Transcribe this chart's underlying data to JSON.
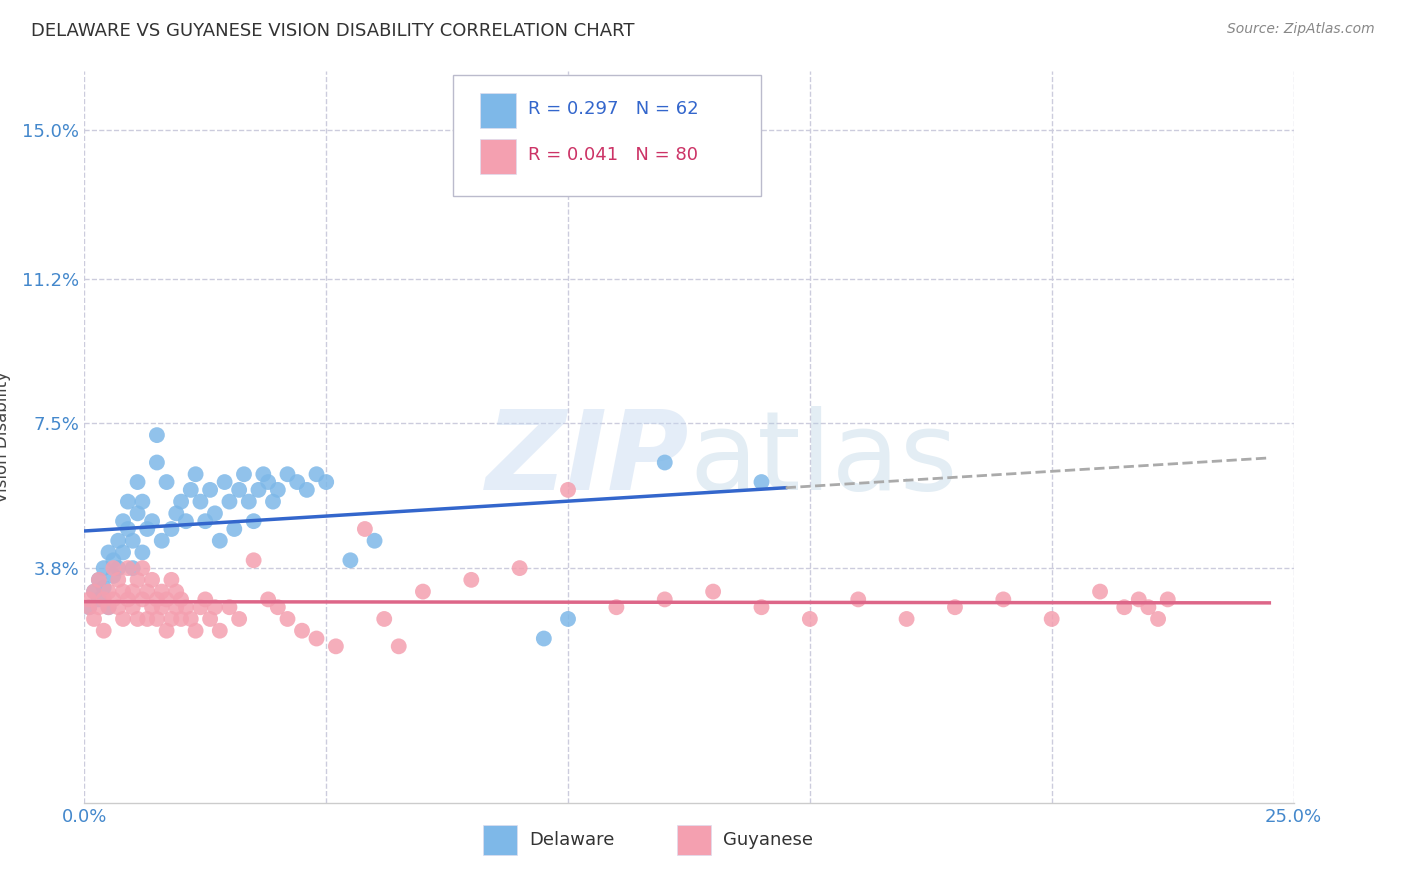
{
  "title": "DELAWARE VS GUYANESE VISION DISABILITY CORRELATION CHART",
  "source": "Source: ZipAtlas.com",
  "ylabel": "Vision Disability",
  "xlim": [
    0.0,
    0.25
  ],
  "ylim": [
    -0.022,
    0.165
  ],
  "ytick_positions": [
    0.038,
    0.075,
    0.112,
    0.15
  ],
  "yticklabels": [
    "3.8%",
    "7.5%",
    "11.2%",
    "15.0%"
  ],
  "background_color": "#ffffff",
  "grid_color": "#ccccdd",
  "delaware_color": "#7EB8E8",
  "guyanese_color": "#F4A0B0",
  "delaware_line_color": "#3366CC",
  "guyanese_line_color": "#DD6688",
  "dashed_line_color": "#aaaaaa",
  "R_delaware": 0.297,
  "N_delaware": 62,
  "R_guyanese": 0.041,
  "N_guyanese": 80,
  "delaware_x": [
    0.001,
    0.002,
    0.003,
    0.003,
    0.004,
    0.004,
    0.005,
    0.005,
    0.006,
    0.006,
    0.007,
    0.007,
    0.008,
    0.008,
    0.009,
    0.009,
    0.01,
    0.01,
    0.011,
    0.011,
    0.012,
    0.012,
    0.013,
    0.014,
    0.015,
    0.015,
    0.016,
    0.017,
    0.018,
    0.019,
    0.02,
    0.021,
    0.022,
    0.023,
    0.024,
    0.025,
    0.026,
    0.027,
    0.028,
    0.029,
    0.03,
    0.031,
    0.032,
    0.033,
    0.034,
    0.035,
    0.036,
    0.037,
    0.038,
    0.039,
    0.04,
    0.042,
    0.044,
    0.046,
    0.048,
    0.05,
    0.055,
    0.06,
    0.095,
    0.1,
    0.12,
    0.14
  ],
  "delaware_y": [
    0.028,
    0.032,
    0.035,
    0.03,
    0.038,
    0.033,
    0.028,
    0.042,
    0.04,
    0.036,
    0.045,
    0.038,
    0.05,
    0.042,
    0.055,
    0.048,
    0.038,
    0.045,
    0.06,
    0.052,
    0.042,
    0.055,
    0.048,
    0.05,
    0.065,
    0.072,
    0.045,
    0.06,
    0.048,
    0.052,
    0.055,
    0.05,
    0.058,
    0.062,
    0.055,
    0.05,
    0.058,
    0.052,
    0.045,
    0.06,
    0.055,
    0.048,
    0.058,
    0.062,
    0.055,
    0.05,
    0.058,
    0.062,
    0.06,
    0.055,
    0.058,
    0.062,
    0.06,
    0.058,
    0.062,
    0.06,
    0.04,
    0.045,
    0.02,
    0.025,
    0.065,
    0.06
  ],
  "guyanese_x": [
    0.001,
    0.001,
    0.002,
    0.002,
    0.003,
    0.003,
    0.004,
    0.004,
    0.005,
    0.005,
    0.006,
    0.006,
    0.007,
    0.007,
    0.008,
    0.008,
    0.009,
    0.009,
    0.01,
    0.01,
    0.011,
    0.011,
    0.012,
    0.012,
    0.013,
    0.013,
    0.014,
    0.014,
    0.015,
    0.015,
    0.016,
    0.016,
    0.017,
    0.017,
    0.018,
    0.018,
    0.019,
    0.019,
    0.02,
    0.02,
    0.021,
    0.022,
    0.023,
    0.024,
    0.025,
    0.026,
    0.027,
    0.028,
    0.03,
    0.032,
    0.035,
    0.038,
    0.04,
    0.042,
    0.045,
    0.048,
    0.052,
    0.058,
    0.062,
    0.065,
    0.07,
    0.08,
    0.09,
    0.1,
    0.11,
    0.12,
    0.13,
    0.14,
    0.15,
    0.16,
    0.17,
    0.18,
    0.19,
    0.2,
    0.21,
    0.215,
    0.218,
    0.22,
    0.222,
    0.224
  ],
  "guyanese_y": [
    0.03,
    0.028,
    0.032,
    0.025,
    0.035,
    0.028,
    0.03,
    0.022,
    0.028,
    0.032,
    0.038,
    0.03,
    0.035,
    0.028,
    0.032,
    0.025,
    0.03,
    0.038,
    0.028,
    0.032,
    0.035,
    0.025,
    0.03,
    0.038,
    0.032,
    0.025,
    0.028,
    0.035,
    0.03,
    0.025,
    0.032,
    0.028,
    0.03,
    0.022,
    0.035,
    0.025,
    0.028,
    0.032,
    0.025,
    0.03,
    0.028,
    0.025,
    0.022,
    0.028,
    0.03,
    0.025,
    0.028,
    0.022,
    0.028,
    0.025,
    0.04,
    0.03,
    0.028,
    0.025,
    0.022,
    0.02,
    0.018,
    0.048,
    0.025,
    0.018,
    0.032,
    0.035,
    0.038,
    0.058,
    0.028,
    0.03,
    0.032,
    0.028,
    0.025,
    0.03,
    0.025,
    0.028,
    0.03,
    0.025,
    0.032,
    0.028,
    0.03,
    0.028,
    0.025,
    0.03
  ]
}
